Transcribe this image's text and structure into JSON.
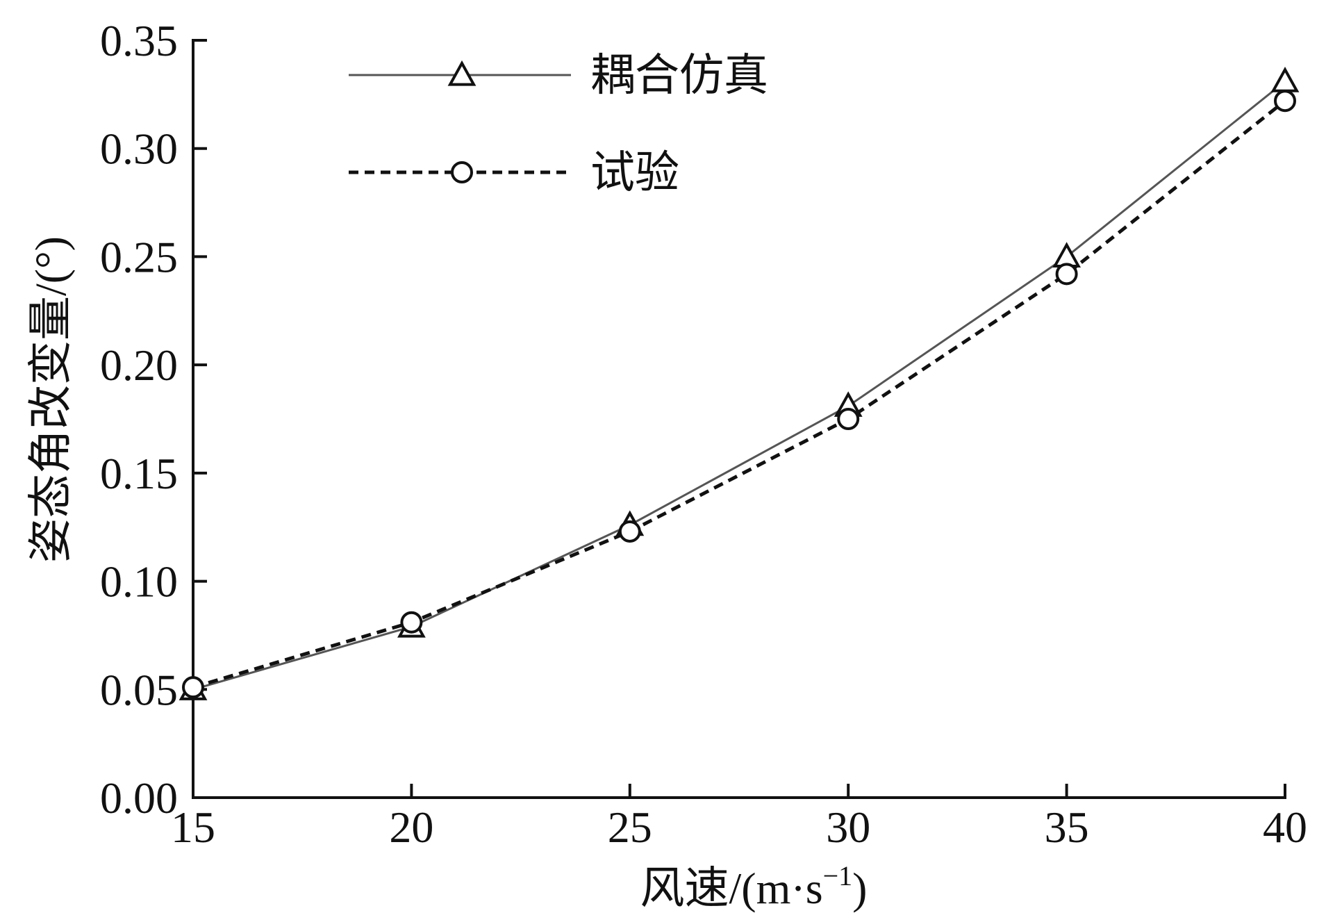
{
  "chart_data": {
    "type": "line",
    "title": "",
    "xlabel": "风速/(m·s",
    "xlabel_sup": "−1",
    "xlabel_close": ")",
    "ylabel": "姿态角改变量/(°)",
    "x": [
      15,
      20,
      25,
      30,
      35,
      40
    ],
    "xticks": [
      "15",
      "20",
      "25",
      "30",
      "35",
      "40"
    ],
    "yticks": [
      "0.00",
      "0.05",
      "0.10",
      "0.15",
      "0.20",
      "0.25",
      "0.30",
      "0.35"
    ],
    "xlim": [
      15,
      40
    ],
    "ylim": [
      0,
      0.35
    ],
    "grid": false,
    "legend_position": "top-left",
    "series": [
      {
        "name": "耦合仿真",
        "values": [
          0.05,
          0.079,
          0.126,
          0.181,
          0.25,
          0.331
        ],
        "marker": "triangle",
        "line_style": "solid",
        "color": "#555555"
      },
      {
        "name": "试验",
        "values": [
          0.051,
          0.081,
          0.123,
          0.175,
          0.242,
          0.322
        ],
        "marker": "circle",
        "line_style": "dashed",
        "color": "#111111"
      }
    ]
  }
}
